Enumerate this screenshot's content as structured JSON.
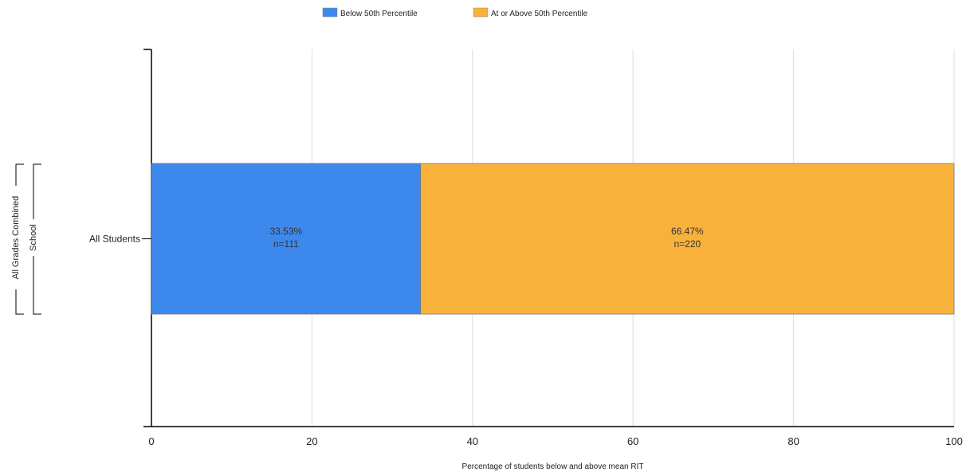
{
  "chart_data": {
    "type": "bar",
    "orientation": "horizontal",
    "stacked": true,
    "title": "",
    "xlabel": "Percentage of students below and above mean RIT",
    "ylabel": "",
    "xlim": [
      0,
      100
    ],
    "x_ticks": [
      0,
      20,
      40,
      60,
      80,
      100
    ],
    "grid": true,
    "legend_position": "top-center",
    "categories": [
      "All Students"
    ],
    "group_labels": {
      "outer": "All Grades Combined",
      "inner": "School"
    },
    "series": [
      {
        "name": "Below 50th Percentile",
        "color": "#3d88ec",
        "values": [
          33.53
        ],
        "labels": [
          [
            "33.53%",
            "n=111"
          ]
        ]
      },
      {
        "name": "At or Above 50th Percentile",
        "color": "#f8b23c",
        "values": [
          66.47
        ],
        "labels": [
          [
            "66.47%",
            "n=220"
          ]
        ]
      }
    ]
  }
}
